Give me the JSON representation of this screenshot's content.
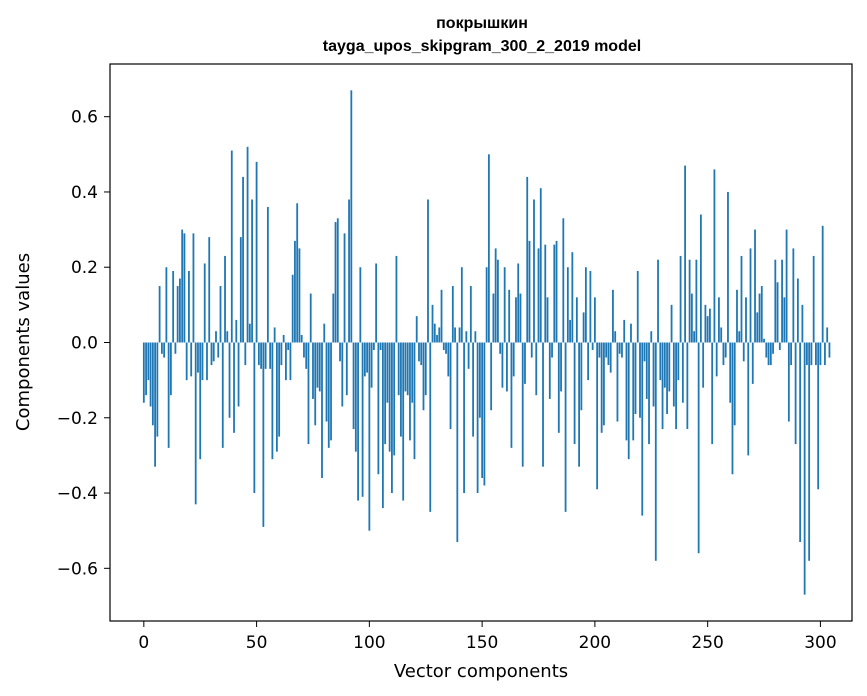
{
  "chart_data": {
    "type": "bar",
    "title": "покрышкин",
    "subtitle": "tayga_upos_skipgram_300_2_2019 model",
    "xlabel": "Vector components",
    "ylabel": "Components values",
    "xlim": [
      -15,
      314
    ],
    "ylim": [
      -0.74,
      0.74
    ],
    "x_ticks": [
      0,
      50,
      100,
      150,
      200,
      250,
      300
    ],
    "y_ticks": [
      -0.6,
      -0.4,
      -0.2,
      0.0,
      0.2,
      0.4,
      0.6
    ],
    "x_tick_labels": [
      "0",
      "50",
      "100",
      "150",
      "200",
      "250",
      "300"
    ],
    "y_tick_labels": [
      "−0.6",
      "−0.4",
      "−0.2",
      "0.0",
      "0.2",
      "0.4",
      "0.6"
    ],
    "bar_color": "#1f77b4",
    "values": [
      -0.16,
      -0.14,
      -0.1,
      -0.17,
      -0.22,
      -0.33,
      -0.25,
      0.15,
      -0.03,
      -0.04,
      0.2,
      -0.28,
      -0.14,
      0.19,
      -0.03,
      0.15,
      0.17,
      0.3,
      0.29,
      -0.1,
      0.19,
      -0.09,
      0.29,
      -0.43,
      -0.08,
      -0.31,
      -0.1,
      0.21,
      -0.1,
      0.28,
      -0.06,
      -0.05,
      0.03,
      -0.04,
      0.15,
      -0.28,
      0.23,
      0.03,
      -0.2,
      0.51,
      -0.24,
      0.06,
      -0.17,
      0.28,
      0.44,
      -0.06,
      0.52,
      0.05,
      0.38,
      -0.4,
      0.48,
      -0.06,
      -0.07,
      -0.49,
      -0.07,
      0.36,
      -0.07,
      -0.31,
      0.04,
      -0.29,
      -0.25,
      -0.06,
      0.02,
      -0.1,
      -0.02,
      -0.1,
      0.18,
      0.27,
      0.37,
      0.25,
      0.02,
      -0.04,
      -0.07,
      -0.27,
      0.13,
      -0.15,
      -0.22,
      -0.12,
      -0.13,
      -0.36,
      0.05,
      -0.21,
      -0.28,
      -0.26,
      0.13,
      0.32,
      0.33,
      -0.05,
      -0.17,
      0.29,
      -0.14,
      0.38,
      0.67,
      -0.23,
      -0.29,
      -0.42,
      0.2,
      -0.41,
      -0.09,
      -0.08,
      -0.5,
      -0.12,
      -0.02,
      0.21,
      -0.35,
      -0.02,
      -0.44,
      -0.27,
      -0.16,
      -0.29,
      -0.4,
      -0.3,
      0.23,
      -0.14,
      -0.25,
      -0.42,
      -0.13,
      -0.14,
      -0.26,
      -0.16,
      -0.31,
      0.07,
      -0.05,
      -0.06,
      -0.18,
      -0.14,
      0.38,
      -0.45,
      0.1,
      0.05,
      0.02,
      0.04,
      0.14,
      -0.02,
      -0.03,
      -0.09,
      -0.23,
      0.15,
      0.04,
      -0.53,
      0.04,
      0.2,
      -0.4,
      0.03,
      -0.07,
      0.15,
      -0.25,
      0.03,
      -0.4,
      -0.2,
      -0.36,
      -0.38,
      0.2,
      0.5,
      -0.18,
      0.13,
      0.25,
      0.22,
      -0.03,
      -0.12,
      0.2,
      -0.13,
      0.14,
      -0.28,
      -0.09,
      0.12,
      0.21,
      0.13,
      -0.33,
      -0.11,
      0.44,
      0.27,
      -0.04,
      0.38,
      -0.14,
      0.25,
      0.41,
      -0.33,
      0.26,
      0.12,
      -0.15,
      -0.04,
      0.26,
      0.27,
      -0.24,
      -0.13,
      0.33,
      -0.45,
      0.2,
      0.06,
      0.24,
      -0.27,
      0.12,
      -0.33,
      -0.18,
      0.08,
      0.2,
      -0.1,
      0.19,
      -0.02,
      0.12,
      -0.39,
      -0.04,
      -0.24,
      -0.22,
      -0.04,
      -0.06,
      -0.08,
      0.14,
      0.03,
      -0.21,
      -0.03,
      -0.04,
      0.06,
      -0.26,
      -0.31,
      0.05,
      -0.26,
      -0.19,
      0.19,
      -0.2,
      -0.46,
      -0.05,
      -0.15,
      -0.27,
      0.03,
      -0.17,
      -0.58,
      0.22,
      -0.1,
      -0.23,
      -0.12,
      -0.19,
      -0.13,
      0.1,
      -0.17,
      -0.23,
      -0.1,
      0.23,
      -0.16,
      0.47,
      -0.23,
      0.22,
      0.13,
      0.03,
      0.22,
      -0.56,
      0.34,
      -0.12,
      0.1,
      0.07,
      0.09,
      -0.27,
      0.46,
      -0.09,
      0.12,
      0.04,
      -0.06,
      -0.04,
      0.4,
      -0.16,
      -0.35,
      -0.22,
      0.14,
      0.03,
      0.23,
      -0.05,
      0.12,
      -0.3,
      0.25,
      -0.11,
      0.3,
      0.08,
      0.13,
      0.15,
      0.01,
      -0.04,
      -0.06,
      -0.06,
      -0.03,
      0.22,
      0.16,
      -0.02,
      0.22,
      0.12,
      0.3,
      -0.21,
      -0.06,
      0.25,
      -0.27,
      0.17,
      -0.53,
      0.1,
      -0.67,
      -0.06,
      -0.58,
      -0.06,
      0.23,
      -0.06,
      -0.39,
      -0.06,
      0.31,
      -0.06,
      0.04,
      -0.04
    ]
  }
}
